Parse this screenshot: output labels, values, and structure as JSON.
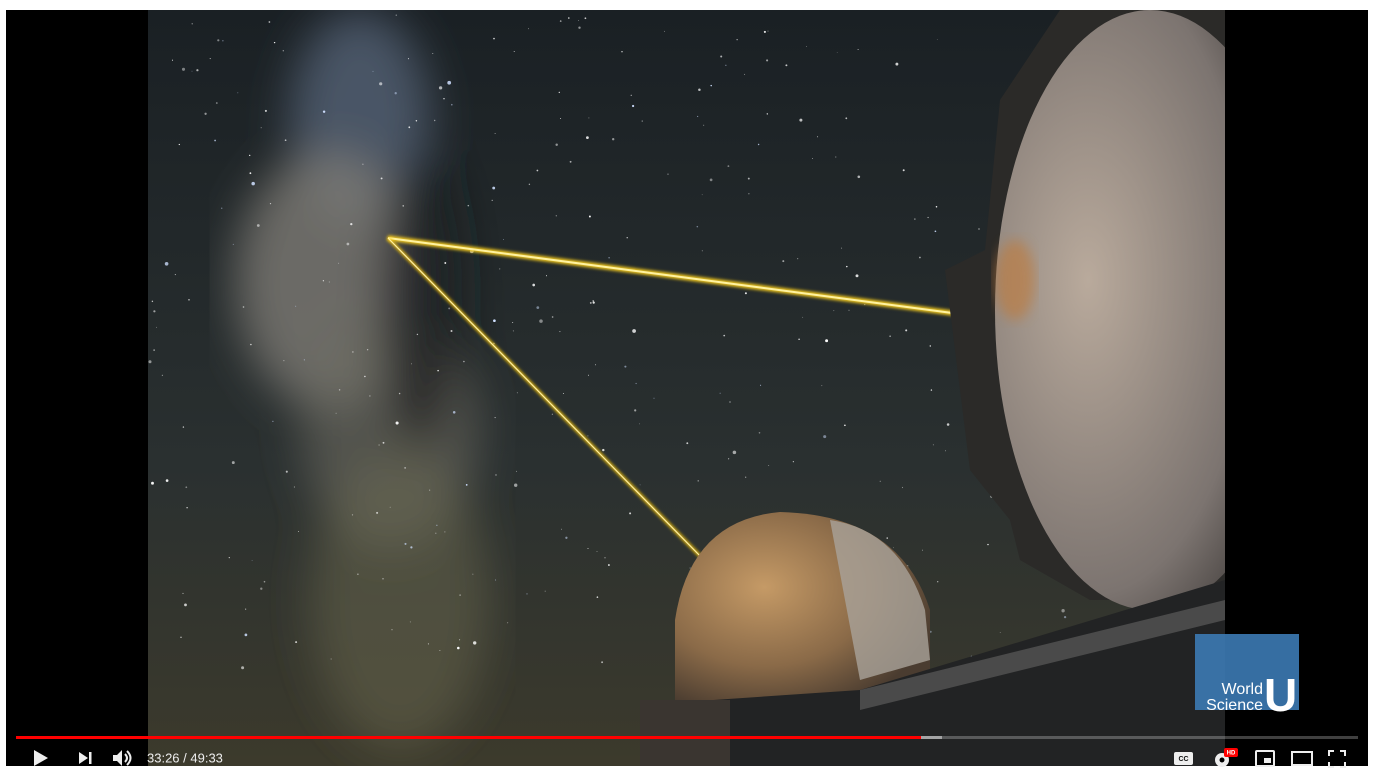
{
  "player": {
    "time": "33:26 / 49:33",
    "cc_label": "CC",
    "hd_badge": "HD"
  },
  "watermark": {
    "line1": "World",
    "line2": "Science",
    "letter": "U"
  }
}
